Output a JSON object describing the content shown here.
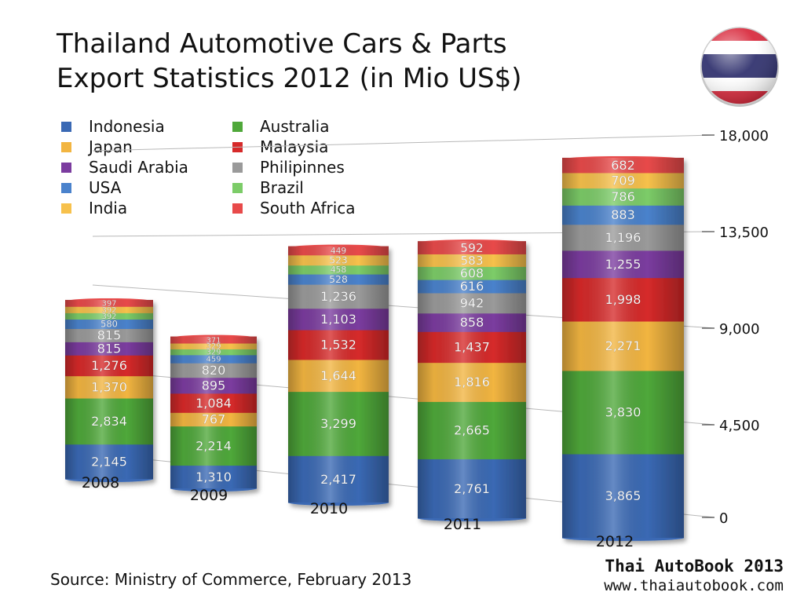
{
  "title": {
    "line1": "Thailand Automotive Cars & Parts",
    "line2": "Export Statistics 2012 (in Mio US$)"
  },
  "flag_icon": "thailand-flag-icon",
  "source": "Source: Ministry of Commerce, February 2013",
  "brand": {
    "name": "Thai AutoBook 2013",
    "url": "www.thaiautobook.com"
  },
  "colors": {
    "Indonesia": "#3a69b4",
    "Australia": "#4fa83a",
    "Japan": "#f2b541",
    "Malaysia": "#d62a2a",
    "Saudi Arabia": "#7b3c9f",
    "Philipinnes": "#9a9a9a",
    "USA": "#4a82cc",
    "Brazil": "#7ccc68",
    "India": "#f7c14c",
    "South Africa": "#e84a4a"
  },
  "chart_data": {
    "type": "bar",
    "stacked": true,
    "title": "Thailand Automotive Cars & Parts Export Statistics 2012 (in Mio US$)",
    "categories": [
      "2008",
      "2009",
      "2010",
      "2011",
      "2012"
    ],
    "ylim": [
      0,
      18000
    ],
    "yticks": [
      0,
      4500,
      9000,
      13500,
      18000
    ],
    "ytick_labels": [
      "0",
      "4,500",
      "9,000",
      "13,500",
      "18,000"
    ],
    "legend": {
      "placement": "top-left",
      "columns": [
        [
          "Indonesia",
          "Japan",
          "Saudi Arabia",
          "USA",
          "India"
        ],
        [
          "Australia",
          "Malaysia",
          "Philipinnes",
          "Brazil",
          "South Africa"
        ]
      ]
    },
    "series": [
      {
        "name": "Indonesia",
        "values": [
          2145,
          1310,
          2417,
          2761,
          3865
        ],
        "labels": [
          "2,145",
          "1,310",
          "2,417",
          "2,761",
          "3,865"
        ]
      },
      {
        "name": "Australia",
        "values": [
          2834,
          2214,
          3299,
          2665,
          3830
        ],
        "labels": [
          "2,834",
          "2,214",
          "3,299",
          "2,665",
          "3,830"
        ]
      },
      {
        "name": "Japan",
        "values": [
          1370,
          767,
          1644,
          1816,
          2271
        ],
        "labels": [
          "1,370",
          "767",
          "1,644",
          "1,816",
          "2,271"
        ]
      },
      {
        "name": "Malaysia",
        "values": [
          1276,
          1084,
          1532,
          1437,
          1998
        ],
        "labels": [
          "1,276",
          "1,084",
          "1,532",
          "1,437",
          "1,998"
        ]
      },
      {
        "name": "Saudi Arabia",
        "values": [
          815,
          895,
          1103,
          858,
          1255
        ],
        "labels": [
          "815",
          "895",
          "1,103",
          "858",
          "1,255"
        ]
      },
      {
        "name": "Philipinnes",
        "values": [
          815,
          820,
          1236,
          942,
          1196
        ],
        "labels": [
          "815",
          "820",
          "1,236",
          "942",
          "1,196"
        ]
      },
      {
        "name": "USA",
        "values": [
          580,
          459,
          528,
          616,
          883
        ],
        "labels": [
          "580",
          "459",
          "528",
          "616",
          "883"
        ]
      },
      {
        "name": "Brazil",
        "values": [
          392,
          329,
          458,
          608,
          786
        ],
        "labels": [
          "392",
          "329",
          "458",
          "608",
          "786"
        ]
      },
      {
        "name": "India",
        "values": [
          392,
          329,
          523,
          583,
          709
        ],
        "labels": [
          "392",
          "329",
          "523",
          "583",
          "709"
        ]
      },
      {
        "name": "South Africa",
        "values": [
          397,
          371,
          449,
          592,
          682
        ],
        "labels": [
          "397",
          "371",
          "449",
          "592",
          "682"
        ]
      }
    ]
  }
}
